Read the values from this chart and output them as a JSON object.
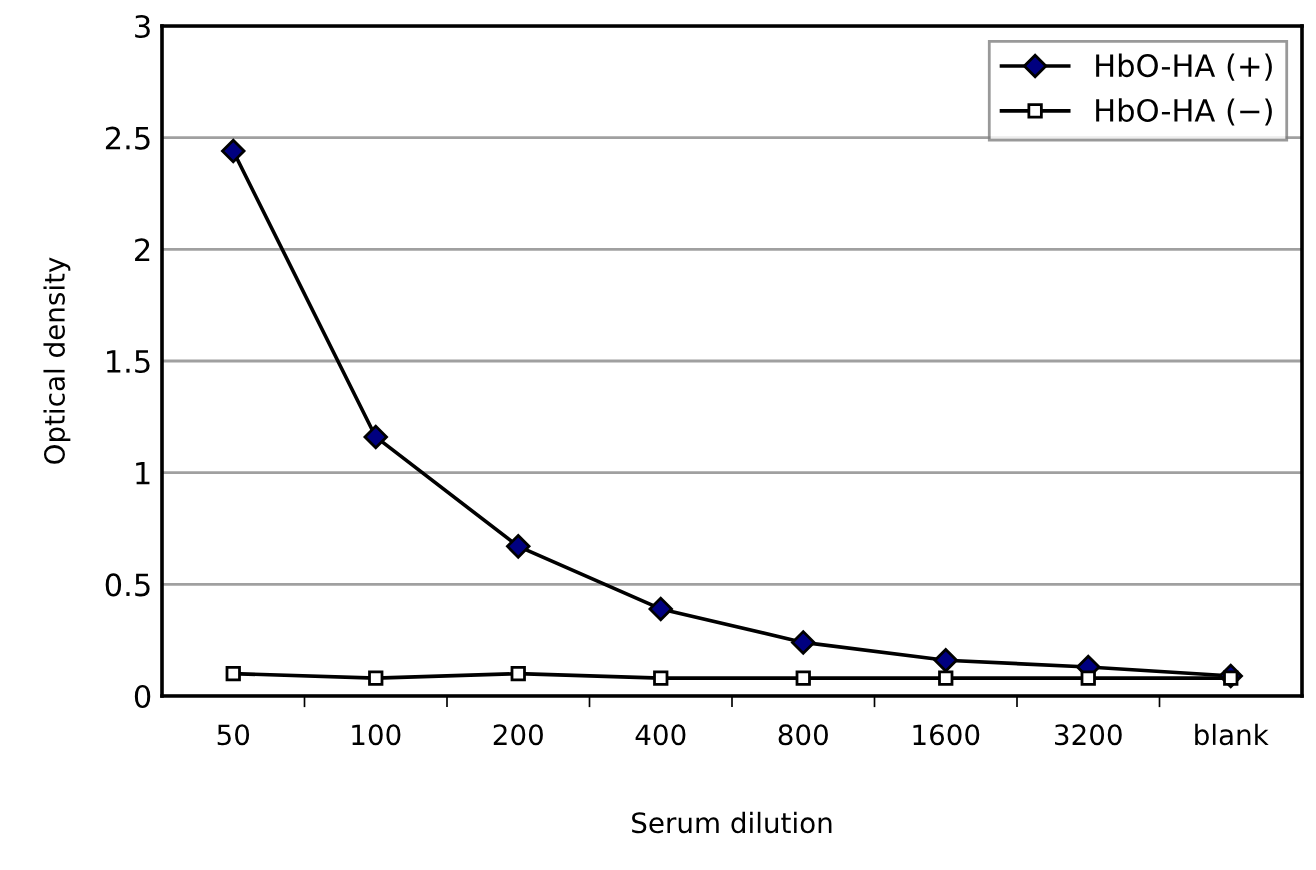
{
  "chart_data": {
    "type": "line",
    "xlabel": "Serum dilution",
    "ylabel": "Optical density",
    "categories": [
      "50",
      "100",
      "200",
      "400",
      "800",
      "1600",
      "3200",
      "blank"
    ],
    "series": [
      {
        "name": "HbO-HA (+)",
        "color": "#000000",
        "marker": "diamond",
        "values": [
          2.44,
          1.16,
          0.67,
          0.39,
          0.24,
          0.16,
          0.13,
          0.09
        ]
      },
      {
        "name": "HbO-HA (−)",
        "color": "#000000",
        "marker": "square",
        "values": [
          0.1,
          0.08,
          0.1,
          0.08,
          0.08,
          0.08,
          0.08,
          0.08
        ]
      }
    ],
    "ylim": [
      0,
      3
    ],
    "yticks": [
      0,
      0.5,
      1,
      1.5,
      2,
      2.5,
      3
    ],
    "grid": "y",
    "legend": "top right",
    "line_style": "solid"
  }
}
